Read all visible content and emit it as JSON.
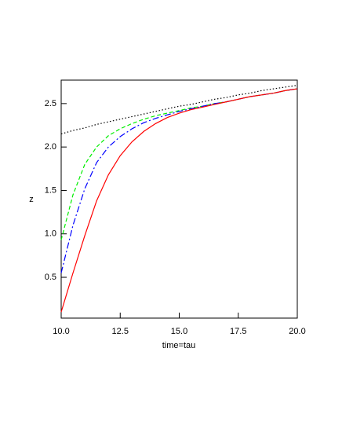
{
  "chart_data": {
    "type": "line",
    "x_label": "time=tau",
    "y_label": "z",
    "x": [
      10,
      10.5,
      11,
      11.5,
      12,
      12.5,
      13,
      13.5,
      14,
      14.5,
      15,
      15.5,
      16,
      16.5,
      17,
      17.5,
      18,
      18.5,
      19,
      19.5,
      20
    ],
    "series": [
      {
        "color": "#000000",
        "dash": "dotted",
        "values": [
          2.15,
          2.19,
          2.22,
          2.26,
          2.29,
          2.32,
          2.35,
          2.38,
          2.41,
          2.44,
          2.47,
          2.49,
          2.52,
          2.55,
          2.57,
          2.6,
          2.62,
          2.65,
          2.67,
          2.69,
          2.71
        ]
      },
      {
        "color": "#00ee00",
        "dash": "dashed",
        "values": [
          0.93,
          1.45,
          1.8,
          2.0,
          2.13,
          2.21,
          2.27,
          2.32,
          2.36,
          2.39,
          2.42,
          2.45,
          2.47,
          2.5,
          2.52,
          2.55,
          2.58,
          2.6,
          2.62,
          2.65,
          2.67
        ]
      },
      {
        "color": "#0000ff",
        "dash": "dashdot",
        "values": [
          0.55,
          1.1,
          1.52,
          1.82,
          2.0,
          2.12,
          2.21,
          2.28,
          2.33,
          2.37,
          2.41,
          2.44,
          2.47,
          2.5,
          2.52,
          2.55,
          2.58,
          2.6,
          2.62,
          2.65,
          2.67
        ]
      },
      {
        "color": "#ff0000",
        "dash": "solid",
        "values": [
          0.1,
          0.55,
          0.98,
          1.38,
          1.68,
          1.9,
          2.06,
          2.18,
          2.27,
          2.34,
          2.39,
          2.43,
          2.46,
          2.49,
          2.52,
          2.55,
          2.58,
          2.6,
          2.62,
          2.65,
          2.67
        ]
      }
    ],
    "xlim": [
      10,
      20
    ],
    "ylim": [
      0.03,
      2.77
    ],
    "xticks": [
      {
        "value": 10,
        "label": "10.0"
      },
      12.5,
      {
        "value": 15,
        "label": "15.0"
      },
      17.5,
      {
        "value": 20,
        "label": "20.0"
      }
    ],
    "yticks": [
      0.5,
      {
        "value": 1,
        "label": "1.0"
      },
      1.5,
      {
        "value": 2,
        "label": "2.0"
      },
      2.5
    ]
  }
}
